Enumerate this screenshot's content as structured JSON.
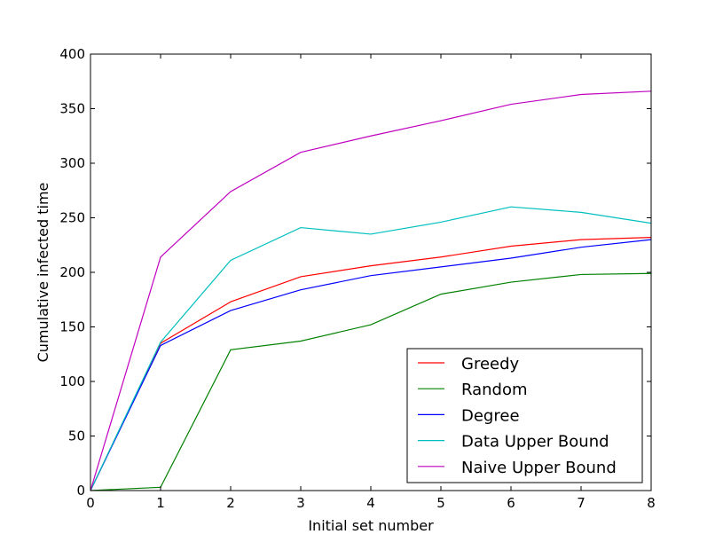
{
  "chart_data": {
    "type": "line",
    "title": "",
    "xlabel": "Initial set number",
    "ylabel": "Cumulative infected time",
    "x": [
      0,
      1,
      2,
      3,
      4,
      5,
      6,
      7,
      8
    ],
    "xlim": [
      0,
      8
    ],
    "ylim": [
      0,
      400
    ],
    "xticks": [
      0,
      1,
      2,
      3,
      4,
      5,
      6,
      7,
      8
    ],
    "yticks": [
      0,
      50,
      100,
      150,
      200,
      250,
      300,
      350,
      400
    ],
    "grid": false,
    "legend_position": "lower-right",
    "series": [
      {
        "name": "Greedy",
        "color": "#ff0000",
        "values": [
          0,
          135,
          173,
          196,
          206,
          214,
          224,
          230,
          232
        ]
      },
      {
        "name": "Random",
        "color": "#008000",
        "values": [
          0,
          3,
          129,
          137,
          152,
          180,
          191,
          198,
          199
        ]
      },
      {
        "name": "Degree",
        "color": "#0000ff",
        "values": [
          0,
          133,
          165,
          184,
          197,
          205,
          213,
          223,
          230
        ]
      },
      {
        "name": "Data Upper Bound",
        "color": "#00bfbf",
        "values": [
          0,
          136,
          211,
          241,
          235,
          246,
          260,
          255,
          245
        ]
      },
      {
        "name": "Naive Upper Bound",
        "color": "#bf00bf",
        "values": [
          0,
          214,
          274,
          310,
          325,
          339,
          354,
          363,
          366
        ]
      }
    ]
  }
}
